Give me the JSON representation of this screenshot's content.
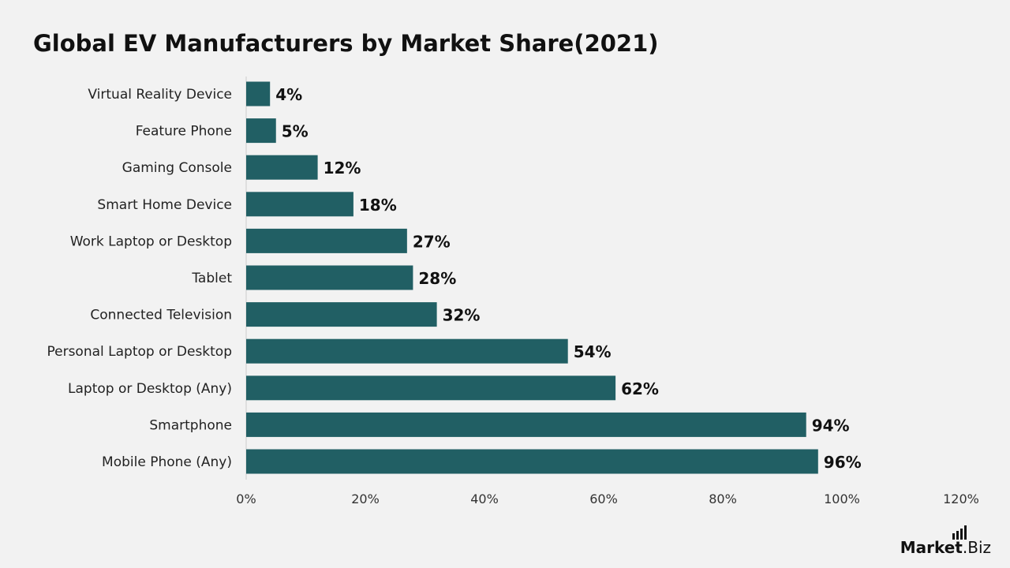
{
  "title": "Global EV Manufacturers by Market Share(2021)",
  "brand": {
    "name_bold": "Market",
    "name_light": ".Biz"
  },
  "colors": {
    "bar": "#215f64",
    "background": "#f2f2f2",
    "axis": "#cccccc"
  },
  "chart_data": {
    "type": "bar",
    "orientation": "horizontal",
    "title": "Global EV Manufacturers by Market Share(2021)",
    "categories": [
      "Virtual Reality Device",
      "Feature Phone",
      "Gaming Console",
      "Smart Home Device",
      "Work Laptop or Desktop",
      "Tablet",
      "Connected Television",
      "Personal Laptop or Desktop",
      "Laptop or Desktop (Any)",
      "Smartphone",
      "Mobile Phone (Any)"
    ],
    "values": [
      4,
      5,
      12,
      18,
      27,
      28,
      32,
      54,
      62,
      94,
      96
    ],
    "value_labels": [
      "4%",
      "5%",
      "12%",
      "18%",
      "27%",
      "28%",
      "32%",
      "54%",
      "62%",
      "94%",
      "96%"
    ],
    "xlim": [
      0,
      120
    ],
    "xticks": [
      0,
      20,
      40,
      60,
      80,
      100,
      120
    ],
    "xtick_labels": [
      "0%",
      "20%",
      "40%",
      "60%",
      "80%",
      "100%",
      "120%"
    ],
    "xlabel": "",
    "ylabel": "",
    "grid": false,
    "legend": "none"
  }
}
